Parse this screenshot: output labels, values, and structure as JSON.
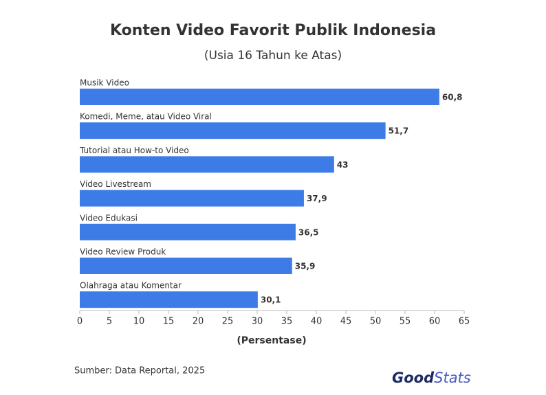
{
  "chart_data": {
    "type": "bar",
    "orientation": "horizontal",
    "title": "Konten Video Favorit Publik Indonesia",
    "subtitle": "(Usia 16 Tahun ke Atas)",
    "categories": [
      "Musik Video",
      "Komedi, Meme, atau Video Viral",
      "Tutorial atau How-to Video",
      "Video Livestream",
      "Video Edukasi",
      "Video Review Produk",
      "Olahraga atau Komentar"
    ],
    "values": [
      60.8,
      51.7,
      43,
      37.9,
      36.5,
      35.9,
      30.1
    ],
    "value_labels": [
      "60,8",
      "51,7",
      "43",
      "37,9",
      "36,5",
      "35,9",
      "30,1"
    ],
    "color": "#3d7be6",
    "xlim": [
      0,
      65
    ],
    "xticks": [
      0,
      5,
      10,
      15,
      20,
      25,
      30,
      35,
      40,
      45,
      50,
      55,
      60,
      65
    ],
    "x_label": "(Persentase)",
    "grid": false,
    "source": "Sumber: Data Reportal, 2025",
    "logo": [
      "Good",
      "Stats"
    ]
  }
}
